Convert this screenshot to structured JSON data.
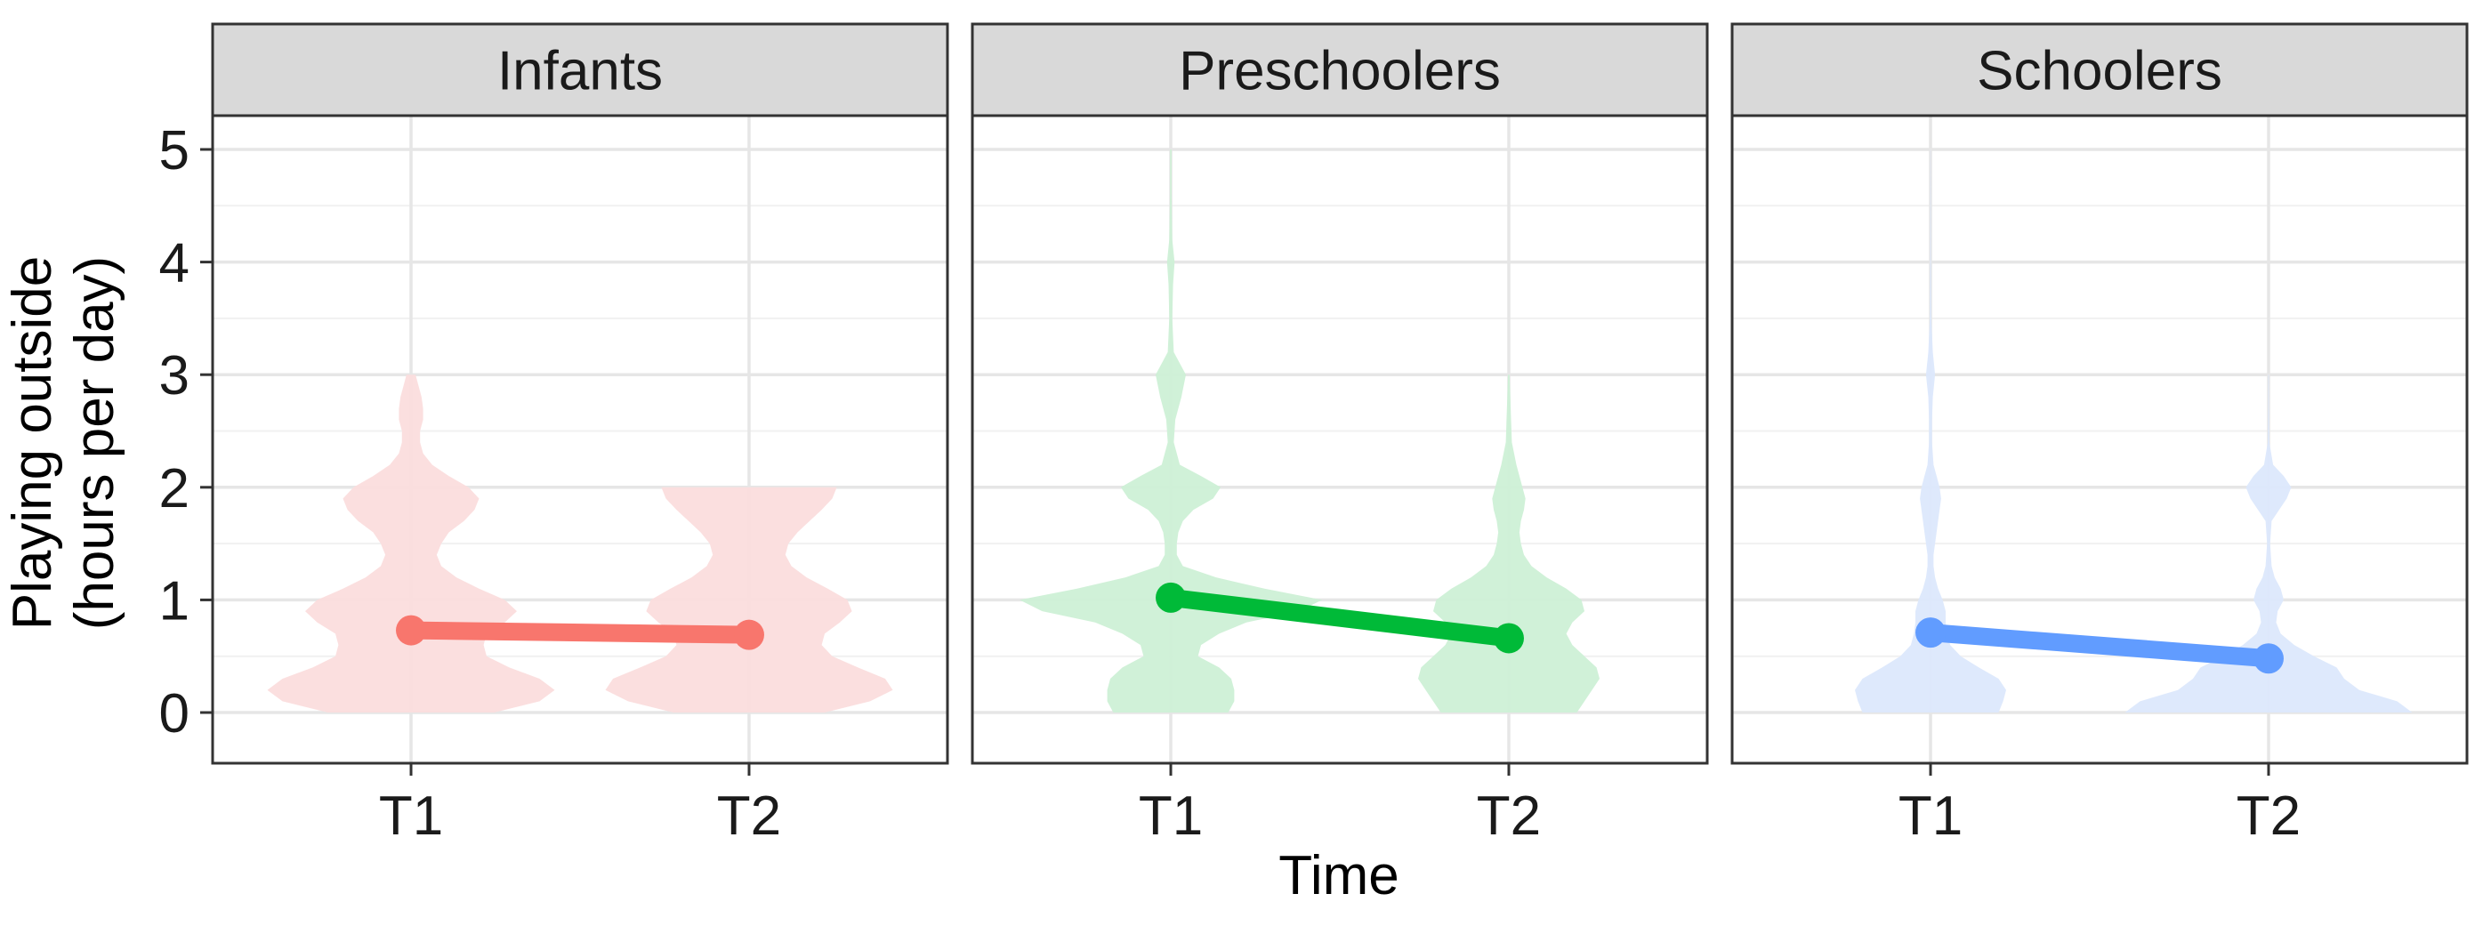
{
  "chart_data": {
    "type": "violin",
    "xlabel": "Time",
    "ylabel_lines": [
      "Playing outside",
      "(hours per day)"
    ],
    "ylim": [
      -0.45,
      5.3
    ],
    "yticks": [
      0,
      1,
      2,
      3,
      4,
      5
    ],
    "categories": [
      "T1",
      "T2"
    ],
    "grid": true,
    "panels": [
      {
        "label": "Infants",
        "color": "#F8766D",
        "fill": "#FBDDDD",
        "means": [
          {
            "x": "T1",
            "y": 0.73
          },
          {
            "x": "T2",
            "y": 0.69
          }
        ],
        "violins": [
          {
            "x": "T1",
            "density": [
              [
                0,
                0.55
              ],
              [
                0.1,
                0.85
              ],
              [
                0.2,
                0.95
              ],
              [
                0.3,
                0.85
              ],
              [
                0.4,
                0.65
              ],
              [
                0.5,
                0.5
              ],
              [
                0.6,
                0.48
              ],
              [
                0.7,
                0.5
              ],
              [
                0.8,
                0.62
              ],
              [
                0.9,
                0.7
              ],
              [
                1.0,
                0.62
              ],
              [
                1.1,
                0.45
              ],
              [
                1.2,
                0.3
              ],
              [
                1.3,
                0.2
              ],
              [
                1.4,
                0.17
              ],
              [
                1.5,
                0.2
              ],
              [
                1.6,
                0.25
              ],
              [
                1.7,
                0.35
              ],
              [
                1.8,
                0.42
              ],
              [
                1.9,
                0.45
              ],
              [
                2.0,
                0.38
              ],
              [
                2.1,
                0.25
              ],
              [
                2.2,
                0.14
              ],
              [
                2.3,
                0.08
              ],
              [
                2.4,
                0.06
              ],
              [
                2.5,
                0.06
              ],
              [
                2.6,
                0.08
              ],
              [
                2.7,
                0.08
              ],
              [
                2.8,
                0.07
              ],
              [
                2.9,
                0.05
              ],
              [
                3.0,
                0.03
              ]
            ]
          },
          {
            "x": "T2",
            "density": [
              [
                0,
                0.5
              ],
              [
                0.1,
                0.8
              ],
              [
                0.2,
                0.95
              ],
              [
                0.3,
                0.9
              ],
              [
                0.4,
                0.72
              ],
              [
                0.5,
                0.55
              ],
              [
                0.6,
                0.48
              ],
              [
                0.7,
                0.5
              ],
              [
                0.8,
                0.6
              ],
              [
                0.9,
                0.68
              ],
              [
                1.0,
                0.65
              ],
              [
                1.1,
                0.52
              ],
              [
                1.2,
                0.38
              ],
              [
                1.3,
                0.28
              ],
              [
                1.4,
                0.24
              ],
              [
                1.5,
                0.26
              ],
              [
                1.6,
                0.32
              ],
              [
                1.7,
                0.4
              ],
              [
                1.8,
                0.48
              ],
              [
                1.9,
                0.55
              ],
              [
                2.0,
                0.58
              ]
            ]
          }
        ]
      },
      {
        "label": "Preschoolers",
        "color": "#00BA38",
        "fill": "#CDF0D6",
        "means": [
          {
            "x": "T1",
            "y": 1.02
          },
          {
            "x": "T2",
            "y": 0.66
          }
        ],
        "violins": [
          {
            "x": "T1",
            "density": [
              [
                0,
                0.38
              ],
              [
                0.1,
                0.42
              ],
              [
                0.2,
                0.42
              ],
              [
                0.3,
                0.4
              ],
              [
                0.4,
                0.32
              ],
              [
                0.5,
                0.18
              ],
              [
                0.6,
                0.2
              ],
              [
                0.7,
                0.32
              ],
              [
                0.8,
                0.5
              ],
              [
                0.9,
                0.85
              ],
              [
                1.0,
                1.0
              ],
              [
                1.1,
                0.62
              ],
              [
                1.2,
                0.3
              ],
              [
                1.3,
                0.08
              ],
              [
                1.4,
                0.04
              ],
              [
                1.5,
                0.04
              ],
              [
                1.6,
                0.05
              ],
              [
                1.7,
                0.08
              ],
              [
                1.8,
                0.15
              ],
              [
                1.9,
                0.28
              ],
              [
                2.0,
                0.33
              ],
              [
                2.1,
                0.2
              ],
              [
                2.2,
                0.06
              ],
              [
                2.4,
                0.02
              ],
              [
                2.6,
                0.03
              ],
              [
                2.8,
                0.07
              ],
              [
                3.0,
                0.1
              ],
              [
                3.2,
                0.02
              ],
              [
                3.5,
                0.01
              ],
              [
                3.8,
                0.015
              ],
              [
                4.0,
                0.025
              ],
              [
                4.2,
                0.01
              ],
              [
                4.6,
                0.005
              ],
              [
                5.0,
                0.005
              ]
            ]
          },
          {
            "x": "T2",
            "density": [
              [
                0,
                0.45
              ],
              [
                0.1,
                0.5
              ],
              [
                0.2,
                0.55
              ],
              [
                0.3,
                0.6
              ],
              [
                0.4,
                0.58
              ],
              [
                0.5,
                0.5
              ],
              [
                0.6,
                0.42
              ],
              [
                0.7,
                0.38
              ],
              [
                0.8,
                0.42
              ],
              [
                0.9,
                0.5
              ],
              [
                1.0,
                0.48
              ],
              [
                1.1,
                0.38
              ],
              [
                1.2,
                0.25
              ],
              [
                1.3,
                0.15
              ],
              [
                1.4,
                0.1
              ],
              [
                1.5,
                0.08
              ],
              [
                1.6,
                0.07
              ],
              [
                1.7,
                0.08
              ],
              [
                1.8,
                0.1
              ],
              [
                1.9,
                0.11
              ],
              [
                2.0,
                0.09
              ],
              [
                2.2,
                0.05
              ],
              [
                2.4,
                0.02
              ],
              [
                2.6,
                0.015
              ],
              [
                2.8,
                0.01
              ],
              [
                3.0,
                0.005
              ]
            ]
          }
        ]
      },
      {
        "label": "Schoolers",
        "color": "#619CFF",
        "fill": "#DCE8FC",
        "means": [
          {
            "x": "T1",
            "y": 0.71
          },
          {
            "x": "T2",
            "y": 0.48
          }
        ],
        "violins": [
          {
            "x": "T1",
            "density": [
              [
                0,
                0.45
              ],
              [
                0.1,
                0.48
              ],
              [
                0.2,
                0.5
              ],
              [
                0.3,
                0.45
              ],
              [
                0.4,
                0.32
              ],
              [
                0.5,
                0.2
              ],
              [
                0.6,
                0.13
              ],
              [
                0.7,
                0.11
              ],
              [
                0.8,
                0.1
              ],
              [
                0.9,
                0.1
              ],
              [
                1.0,
                0.08
              ],
              [
                1.1,
                0.05
              ],
              [
                1.2,
                0.03
              ],
              [
                1.3,
                0.02
              ],
              [
                1.4,
                0.02
              ],
              [
                1.5,
                0.03
              ],
              [
                1.6,
                0.04
              ],
              [
                1.7,
                0.05
              ],
              [
                1.8,
                0.06
              ],
              [
                1.9,
                0.07
              ],
              [
                2.0,
                0.06
              ],
              [
                2.1,
                0.04
              ],
              [
                2.2,
                0.02
              ],
              [
                2.4,
                0.01
              ],
              [
                2.6,
                0.01
              ],
              [
                2.8,
                0.015
              ],
              [
                3.0,
                0.03
              ],
              [
                3.2,
                0.015
              ],
              [
                3.5,
                0.005
              ],
              [
                4.0,
                0.003
              ],
              [
                4.5,
                0.002
              ],
              [
                5.0,
                0.001
              ]
            ]
          },
          {
            "x": "T2",
            "density": [
              [
                0,
                0.95
              ],
              [
                0.1,
                0.85
              ],
              [
                0.2,
                0.6
              ],
              [
                0.3,
                0.5
              ],
              [
                0.4,
                0.45
              ],
              [
                0.5,
                0.3
              ],
              [
                0.6,
                0.17
              ],
              [
                0.7,
                0.08
              ],
              [
                0.8,
                0.05
              ],
              [
                0.9,
                0.06
              ],
              [
                1.0,
                0.1
              ],
              [
                1.1,
                0.08
              ],
              [
                1.2,
                0.04
              ],
              [
                1.3,
                0.02
              ],
              [
                1.5,
                0.01
              ],
              [
                1.7,
                0.02
              ],
              [
                1.9,
                0.12
              ],
              [
                2.0,
                0.15
              ],
              [
                2.1,
                0.1
              ],
              [
                2.2,
                0.03
              ],
              [
                2.4,
                0.005
              ],
              [
                2.7,
                0.003
              ],
              [
                3.0,
                0.002
              ]
            ]
          }
        ]
      }
    ]
  }
}
